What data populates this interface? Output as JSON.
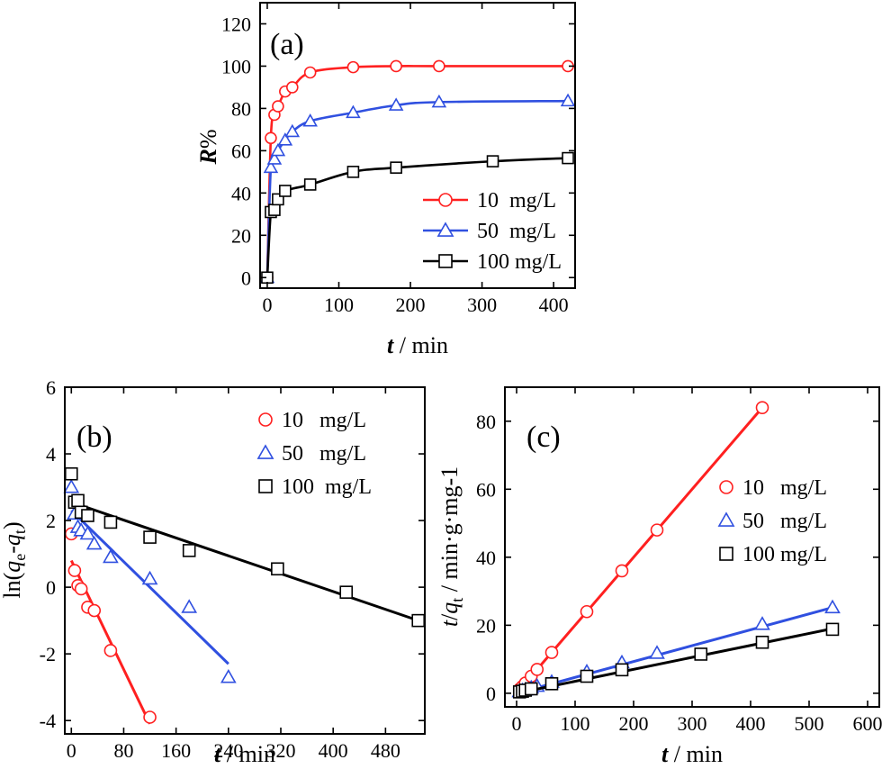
{
  "figure": {
    "panels": [
      {
        "id": "a",
        "label": "(a)"
      },
      {
        "id": "b",
        "label": "(b)"
      },
      {
        "id": "c",
        "label": "(c)"
      }
    ]
  },
  "chart_data": [
    {
      "panel": "(a)",
      "type": "line",
      "xlabel_italic": "t",
      "xlabel_rest": " / min",
      "ylabel_italic": "R",
      "ylabel_rest": "%",
      "xlim": [
        -10,
        430
      ],
      "ylim": [
        -5,
        130
      ],
      "xticks": [
        0,
        100,
        200,
        300,
        400
      ],
      "yticks": [
        0,
        20,
        40,
        60,
        80,
        100,
        120
      ],
      "legend_position": "bottom-right",
      "series": [
        {
          "name": "10  mg/L",
          "color": "#ff2020",
          "marker": "circle",
          "x": [
            0,
            5,
            10,
            15,
            25,
            35,
            60,
            120,
            180,
            240,
            420
          ],
          "y": [
            0,
            66,
            77,
            81,
            88,
            90,
            97,
            99.5,
            100,
            100,
            100
          ]
        },
        {
          "name": "50  mg/L",
          "color": "#3050e0",
          "marker": "triangle",
          "x": [
            0,
            5,
            10,
            15,
            25,
            35,
            60,
            120,
            180,
            240,
            420
          ],
          "y": [
            0,
            52,
            56,
            60,
            65,
            69,
            74,
            78,
            81.5,
            83,
            83.5
          ]
        },
        {
          "name": "100 mg/L",
          "color": "#000000",
          "marker": "square",
          "x": [
            0,
            5,
            10,
            15,
            25,
            60,
            120,
            180,
            315,
            420
          ],
          "y": [
            0,
            31,
            32,
            37,
            41,
            44,
            50,
            52,
            55,
            56.5
          ]
        }
      ]
    },
    {
      "panel": "(b)",
      "type": "scatter",
      "ylabel_pre": "ln(",
      "ylabel_q1": "q",
      "ylabel_s1": "e",
      "ylabel_mid": "-",
      "ylabel_q2": "q",
      "ylabel_s2": "t",
      "ylabel_post": ")",
      "xlabel_italic": "t",
      "xlabel_rest": " / min",
      "xlim": [
        -10,
        540
      ],
      "ylim": [
        -4.4,
        6
      ],
      "xticks": [
        0,
        80,
        160,
        240,
        320,
        400,
        480
      ],
      "yticks": [
        -4,
        -2,
        0,
        2,
        4,
        6
      ],
      "legend_position": "top-right",
      "series": [
        {
          "name": "10   mg/L",
          "color": "#ff2020",
          "marker": "circle",
          "x": [
            0,
            5,
            10,
            15,
            25,
            35,
            60,
            120
          ],
          "y": [
            1.6,
            0.5,
            0.05,
            -0.05,
            -0.6,
            -0.7,
            -1.9,
            -3.9
          ],
          "fit": {
            "x": [
              0,
              120
            ],
            "y": [
              0.8,
              -4.1
            ]
          }
        },
        {
          "name": "50   mg/L",
          "color": "#3050e0",
          "marker": "triangle",
          "x": [
            0,
            5,
            10,
            15,
            25,
            35,
            60,
            120,
            180,
            240
          ],
          "y": [
            3.0,
            2.2,
            1.8,
            1.7,
            1.6,
            1.3,
            0.9,
            0.25,
            -0.6,
            -2.7
          ],
          "fit": {
            "x": [
              0,
              240
            ],
            "y": [
              2.3,
              -2.3
            ]
          }
        },
        {
          "name": "100  mg/L",
          "color": "#000000",
          "marker": "square",
          "x": [
            0,
            5,
            10,
            15,
            25,
            60,
            120,
            180,
            315,
            420,
            530
          ],
          "y": [
            3.4,
            2.55,
            2.6,
            2.25,
            2.15,
            1.95,
            1.5,
            1.1,
            0.55,
            -0.15,
            -1.0
          ],
          "fit": {
            "x": [
              0,
              530
            ],
            "y": [
              2.55,
              -1.0
            ]
          }
        }
      ]
    },
    {
      "panel": "(c)",
      "type": "scatter",
      "ylabel_q1": "t",
      "ylabel_mid": "/",
      "ylabel_q2": "q",
      "ylabel_s2": "t",
      "ylabel_post": " / min·g·mg-1",
      "xlabel_italic": "t",
      "xlabel_rest": " / min",
      "xlim": [
        -20,
        620
      ],
      "ylim": [
        -4,
        90
      ],
      "xticks": [
        0,
        100,
        200,
        300,
        400,
        500,
        600
      ],
      "yticks": [
        0,
        20,
        40,
        60,
        80
      ],
      "legend_position": "right",
      "series": [
        {
          "name": "10   mg/L",
          "color": "#ff2020",
          "marker": "circle",
          "x": [
            5,
            10,
            15,
            25,
            35,
            60,
            120,
            180,
            240,
            420
          ],
          "y": [
            1.2,
            2.0,
            3.0,
            5.0,
            7.0,
            12.0,
            24.0,
            36.0,
            48.0,
            84.0
          ],
          "fit": {
            "x": [
              0,
              420
            ],
            "y": [
              0,
              84
            ]
          }
        },
        {
          "name": "50   mg/L",
          "color": "#3050e0",
          "marker": "triangle",
          "x": [
            5,
            10,
            15,
            25,
            35,
            60,
            120,
            180,
            240,
            420,
            540
          ],
          "y": [
            0.5,
            0.8,
            1.0,
            1.6,
            2.1,
            3.3,
            6.3,
            9.0,
            11.8,
            20.3,
            25.2
          ],
          "fit": {
            "x": [
              0,
              540
            ],
            "y": [
              0,
              25.2
            ]
          }
        },
        {
          "name": "100 mg/L",
          "color": "#000000",
          "marker": "square",
          "x": [
            5,
            10,
            15,
            25,
            60,
            120,
            180,
            315,
            420,
            540
          ],
          "y": [
            0.4,
            0.6,
            0.9,
            1.3,
            2.8,
            5.0,
            6.9,
            11.5,
            15.0,
            18.8
          ],
          "fit": {
            "x": [
              0,
              540
            ],
            "y": [
              0,
              19.0
            ]
          }
        }
      ]
    }
  ]
}
